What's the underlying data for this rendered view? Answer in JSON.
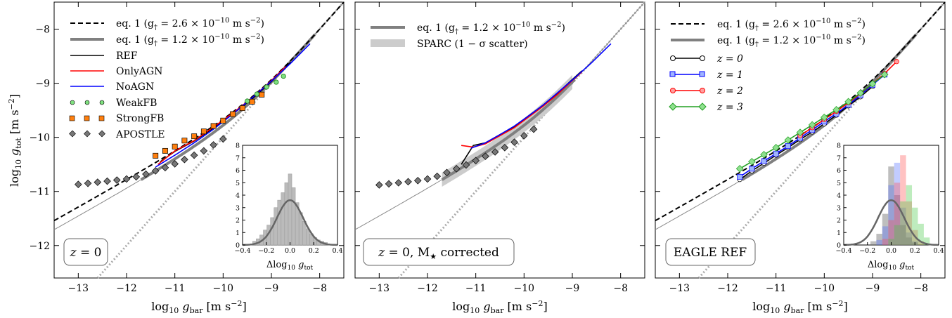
{
  "chart_data": [
    {
      "type": "line",
      "panel_label": "z = 0",
      "xlabel": "log10 g_bar [m s^-2]",
      "ylabel": "log10 g_tot [m s^-2]",
      "xlim": [
        -13.5,
        -7.5
      ],
      "ylim": [
        -12.6,
        -7.5
      ],
      "xticks": [
        -13,
        -12,
        -11,
        -10,
        -9,
        -8
      ],
      "yticks": [
        -12,
        -11,
        -10,
        -9,
        -8
      ],
      "legend_position": "top-left",
      "legend": [
        "eq. 1 (g† = 2.6 × 10^-10 m s^-2)",
        "eq. 1 (g† = 1.2 × 10^-10 m s^-2)",
        "REF",
        "OnlyAGN",
        "NoAGN",
        "WeakFB",
        "StrongFB",
        "APOSTLE"
      ],
      "series": [
        {
          "name": "REF",
          "x": [
            -11.3,
            -11.0,
            -10.6,
            -10.2,
            -9.8,
            -9.4,
            -9.0,
            -8.6
          ],
          "y": [
            -10.45,
            -10.26,
            -10.07,
            -9.83,
            -9.57,
            -9.29,
            -8.97,
            -8.61
          ]
        },
        {
          "name": "OnlyAGN",
          "x": [
            -11.35,
            -11.0,
            -10.6,
            -10.2,
            -9.8,
            -9.4,
            -9.0,
            -8.7
          ],
          "y": [
            -10.5,
            -10.25,
            -10.06,
            -9.81,
            -9.55,
            -9.27,
            -8.95,
            -8.69
          ]
        },
        {
          "name": "NoAGN",
          "x": [
            -11.4,
            -11.0,
            -10.6,
            -10.2,
            -9.8,
            -9.4,
            -9.0,
            -8.6,
            -8.2
          ],
          "y": [
            -10.55,
            -10.33,
            -10.1,
            -9.85,
            -9.57,
            -9.27,
            -8.96,
            -8.63,
            -8.27
          ]
        },
        {
          "name": "WeakFB",
          "x": [
            -9.5,
            -9.3,
            -9.1,
            -8.9,
            -8.75
          ],
          "y": [
            -9.33,
            -9.2,
            -9.07,
            -8.98,
            -8.87
          ]
        },
        {
          "name": "StrongFB",
          "x": [
            -11.4,
            -11.2,
            -11.0,
            -10.8,
            -10.6,
            -10.4,
            -10.2,
            -10.0,
            -9.8,
            -9.6,
            -9.4,
            -9.2
          ],
          "y": [
            -10.34,
            -10.25,
            -10.17,
            -10.06,
            -9.98,
            -9.89,
            -9.79,
            -9.69,
            -9.57,
            -9.46,
            -9.34,
            -9.21
          ]
        },
        {
          "name": "APOSTLE",
          "x": [
            -13.0,
            -12.8,
            -12.6,
            -12.4,
            -12.2,
            -12.0,
            -11.8,
            -11.6,
            -11.4,
            -11.2,
            -11.0,
            -10.8,
            -10.6,
            -10.4,
            -10.2,
            -10.0
          ],
          "y": [
            -10.87,
            -10.85,
            -10.83,
            -10.81,
            -10.79,
            -10.77,
            -10.73,
            -10.68,
            -10.62,
            -10.56,
            -10.49,
            -10.41,
            -10.33,
            -10.25,
            -10.14,
            -10.03
          ]
        }
      ],
      "inset": {
        "type": "bar",
        "xlabel": "Δlog10 g_tot",
        "xlim": [
          -0.4,
          0.4
        ],
        "ylim": [
          0,
          8
        ],
        "xticks": [
          -0.4,
          -0.2,
          0.0,
          0.2,
          0.4
        ],
        "yticks": [
          0,
          1,
          2,
          3,
          4,
          5,
          6,
          7,
          8
        ],
        "bins": [
          -0.3,
          -0.27,
          -0.24,
          -0.21,
          -0.18,
          -0.15,
          -0.12,
          -0.09,
          -0.06,
          -0.03,
          0.0,
          0.03,
          0.06,
          0.09,
          0.12,
          0.15,
          0.18,
          0.21,
          0.24,
          0.27,
          0.3
        ],
        "values": [
          0.3,
          0.5,
          0.8,
          1.2,
          1.6,
          2.2,
          3.0,
          3.6,
          4.2,
          5.0,
          5.7,
          4.6,
          3.4,
          2.6,
          1.9,
          1.3,
          0.9,
          0.6,
          0.4,
          0.3,
          0.2
        ],
        "gaussian_peak": 3.6
      }
    },
    {
      "type": "line",
      "panel_label": "z = 0, M★ corrected",
      "xlabel": "log10 g_bar [m s^-2]",
      "xlim": [
        -13.5,
        -7.5
      ],
      "ylim": [
        -12.6,
        -7.5
      ],
      "xticks": [
        -13,
        -12,
        -11,
        -10,
        -9,
        -8
      ],
      "legend_position": "top-left",
      "legend": [
        "eq. 1 (g† = 1.2 × 10^-10 m s^-2)",
        "SPARC (1 − σ scatter)"
      ],
      "series": [
        {
          "name": "REF",
          "x": [
            -11.3,
            -11.05,
            -10.8,
            -10.5,
            -10.2,
            -9.9,
            -9.6,
            -9.3,
            -9.0,
            -8.8
          ],
          "y": [
            -10.5,
            -10.15,
            -10.1,
            -9.95,
            -9.8,
            -9.6,
            -9.4,
            -9.18,
            -8.93,
            -8.77
          ]
        },
        {
          "name": "OnlyAGN",
          "x": [
            -11.3,
            -11.05,
            -10.8,
            -10.5,
            -10.2,
            -9.9,
            -9.6,
            -9.3,
            -9.0,
            -8.8
          ],
          "y": [
            -10.15,
            -10.18,
            -10.12,
            -9.97,
            -9.82,
            -9.62,
            -9.42,
            -9.2,
            -8.95,
            -8.79
          ]
        },
        {
          "name": "NoAGN",
          "x": [
            -11.1,
            -10.8,
            -10.5,
            -10.2,
            -9.9,
            -9.6,
            -9.3,
            -9.0,
            -8.6,
            -8.2
          ],
          "y": [
            -10.2,
            -10.1,
            -9.95,
            -9.79,
            -9.6,
            -9.4,
            -9.17,
            -8.94,
            -8.62,
            -8.27
          ]
        },
        {
          "name": "APOSTLE",
          "x": [
            -13.0,
            -12.8,
            -12.6,
            -12.4,
            -12.2,
            -12.0,
            -11.8,
            -11.6,
            -11.4,
            -11.2,
            -11.0,
            -10.8,
            -10.6,
            -10.4,
            -10.2,
            -10.0,
            -9.8
          ],
          "y": [
            -10.88,
            -10.86,
            -10.84,
            -10.82,
            -10.8,
            -10.77,
            -10.72,
            -10.65,
            -10.58,
            -10.51,
            -10.43,
            -10.35,
            -10.27,
            -10.19,
            -10.09,
            -9.97,
            -9.85
          ]
        }
      ]
    },
    {
      "type": "line",
      "panel_label": "EAGLE REF",
      "xlabel": "log10 g_bar [m s^-2]",
      "xlim": [
        -13.5,
        -7.5
      ],
      "ylim": [
        -12.6,
        -7.5
      ],
      "xticks": [
        -13,
        -12,
        -11,
        -10,
        -9,
        -8
      ],
      "legend_position": "top-left",
      "legend": [
        "eq. 1 (g† = 2.6 × 10^-10 m s^-2)",
        "eq. 1 (g† = 1.2 × 10^-10 m s^-2)",
        "z = 0",
        "z = 1",
        "z = 2",
        "z = 3"
      ],
      "series": [
        {
          "name": "z = 0",
          "x": [
            -11.75,
            -11.5,
            -11.25,
            -11.0,
            -10.75,
            -10.5,
            -10.25,
            -10.0,
            -9.75,
            -9.5,
            -9.25,
            -9.0
          ],
          "y": [
            -10.78,
            -10.62,
            -10.48,
            -10.33,
            -10.19,
            -10.04,
            -9.9,
            -9.75,
            -9.59,
            -9.42,
            -9.25,
            -9.06
          ]
        },
        {
          "name": "z = 1",
          "x": [
            -11.75,
            -11.5,
            -11.25,
            -11.0,
            -10.75,
            -10.5,
            -10.25,
            -10.0,
            -9.75,
            -9.5,
            -9.25,
            -9.0,
            -8.75
          ],
          "y": [
            -10.73,
            -10.58,
            -10.44,
            -10.3,
            -10.16,
            -10.01,
            -9.86,
            -9.71,
            -9.56,
            -9.4,
            -9.22,
            -9.03,
            -8.84
          ]
        },
        {
          "name": "z = 2",
          "x": [
            -10.5,
            -10.25,
            -10.0,
            -9.75,
            -9.5,
            -9.25,
            -9.0,
            -8.75,
            -8.5
          ],
          "y": [
            -9.97,
            -9.82,
            -9.67,
            -9.52,
            -9.36,
            -9.19,
            -9.01,
            -8.82,
            -8.6
          ]
        },
        {
          "name": "z = 3",
          "x": [
            -11.75,
            -11.5,
            -11.25,
            -11.0,
            -10.75,
            -10.5,
            -10.25,
            -10.0,
            -9.75,
            -9.5,
            -9.25,
            -9.0,
            -8.75
          ],
          "y": [
            -10.58,
            -10.45,
            -10.32,
            -10.19,
            -10.05,
            -9.91,
            -9.77,
            -9.63,
            -9.49,
            -9.34,
            -9.18,
            -9.01,
            -8.84
          ]
        }
      ],
      "inset": {
        "type": "bar",
        "xlabel": "Δlog10 g_tot",
        "xlim": [
          -0.4,
          0.4
        ],
        "ylim": [
          0,
          8
        ],
        "xticks": [
          -0.4,
          -0.2,
          0.0,
          0.2,
          0.4
        ],
        "yticks": [
          0,
          1,
          2,
          3,
          4,
          5,
          6,
          7,
          8
        ],
        "gaussian_peak": 3.6,
        "series": [
          {
            "name": "z = 0",
            "centers": [
              -0.15,
              -0.1,
              -0.05,
              0.0,
              0.05,
              0.1,
              0.15,
              0.2
            ],
            "values": [
              0.3,
              0.9,
              2.5,
              6.3,
              4.0,
              1.6,
              0.6,
              0.2
            ]
          },
          {
            "name": "z = 1",
            "centers": [
              -0.1,
              -0.05,
              0.0,
              0.05,
              0.1,
              0.15,
              0.2
            ],
            "values": [
              0.4,
              1.5,
              4.8,
              6.6,
              3.0,
              1.0,
              0.3
            ]
          },
          {
            "name": "z = 2",
            "centers": [
              -0.05,
              0.0,
              0.05,
              0.1,
              0.15,
              0.2,
              0.25
            ],
            "values": [
              0.5,
              2.0,
              5.0,
              7.2,
              3.5,
              1.2,
              0.3
            ]
          },
          {
            "name": "z = 3",
            "centers": [
              0.0,
              0.05,
              0.1,
              0.15,
              0.2,
              0.25,
              0.3
            ],
            "values": [
              0.5,
              1.6,
              3.5,
              4.8,
              3.0,
              1.7,
              0.6
            ]
          }
        ]
      }
    }
  ]
}
